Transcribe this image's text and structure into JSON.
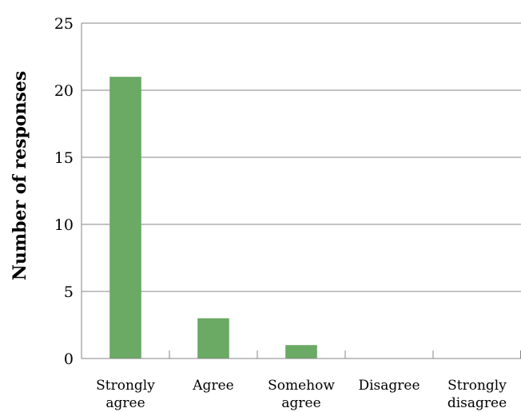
{
  "chart_data": {
    "type": "bar",
    "categories": [
      [
        "Strongly",
        "agree"
      ],
      [
        "Agree"
      ],
      [
        "Somehow",
        "agree"
      ],
      [
        "Disagree"
      ],
      [
        "Strongly",
        "disagree"
      ]
    ],
    "values": [
      21,
      3,
      1,
      0,
      0
    ],
    "ylabel": "Number of responses",
    "xlabel": "",
    "title": "",
    "ylim": [
      0,
      25
    ],
    "yticks": [
      0,
      5,
      10,
      15,
      20,
      25
    ],
    "grid": true,
    "bar_color": "#6aaa64",
    "grid_color": "#868686"
  }
}
